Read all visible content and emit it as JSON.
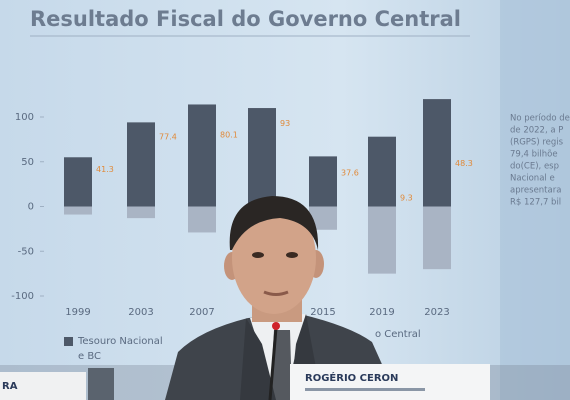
{
  "chart_data": {
    "type": "bar",
    "title": "Resultado Fiscal do Governo Central",
    "categories": [
      "1999",
      "2003",
      "2007",
      null,
      "2015",
      "2019",
      "2023"
    ],
    "series": [
      {
        "name": "Tesouro Nacional e BC",
        "color": "#4d5868",
        "values": [
          55,
          94,
          114,
          110,
          56,
          78,
          120
        ]
      },
      {
        "color": "#a9b4c4",
        "values": [
          -9,
          -13,
          -29,
          null,
          -26,
          -75,
          -70
        ]
      },
      {
        "color": "#e08a3a",
        "values": [
          41.3,
          77.4,
          80.1,
          93.0,
          37.6,
          9.3,
          48.3
        ]
      }
    ],
    "ylim": [
      -100,
      100
    ],
    "yticks": [
      100,
      50,
      0,
      -50,
      -100
    ]
  },
  "side_text": [
    "No período de",
    "de 2022, a P",
    "(RGPS) regis",
    "79,4 bilhõe",
    "do(CE), esp",
    "Nacional e",
    "apresentara",
    "R$ 127,7 bil"
  ],
  "legend_fragment": "o Central",
  "nameplates": [
    "ROGÉRIO CERON",
    "RA"
  ]
}
